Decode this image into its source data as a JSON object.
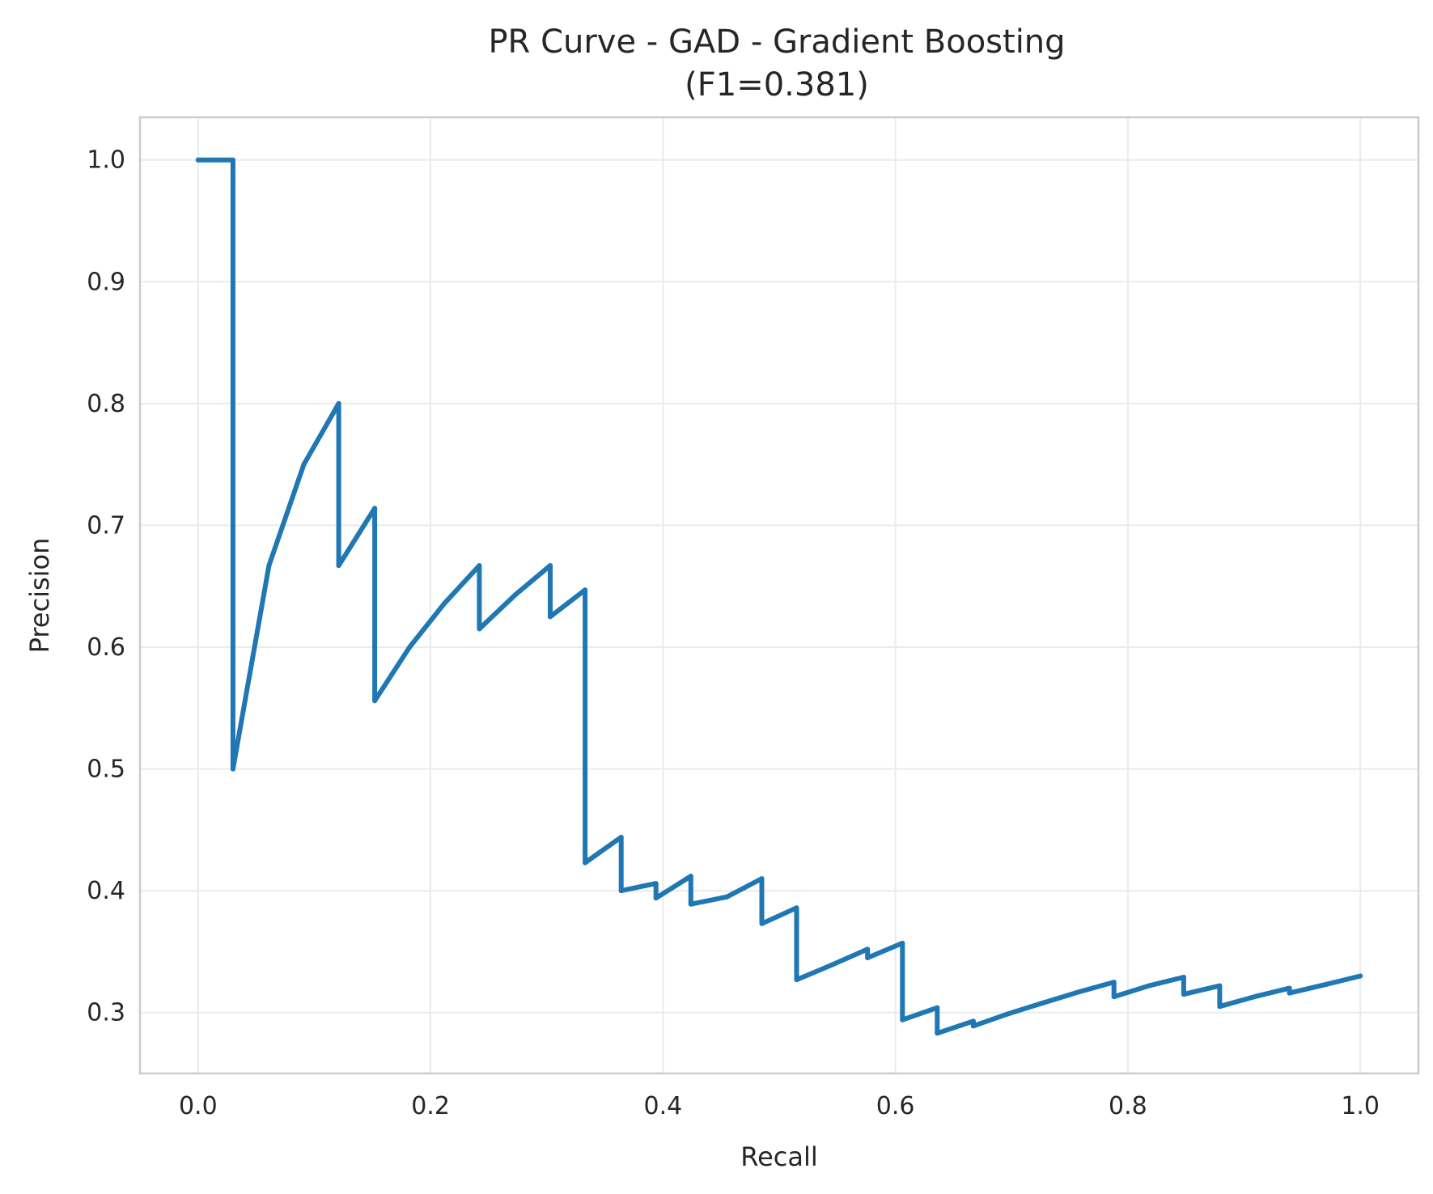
{
  "chart_data": {
    "type": "line",
    "title": "PR Curve - GAD - Gradient Boosting",
    "subtitle": "(F1=0.381)",
    "xlabel": "Recall",
    "ylabel": "Precision",
    "xlim": [
      -0.05,
      1.05
    ],
    "ylim": [
      0.25,
      1.035
    ],
    "xticks": [
      "0.0",
      "0.2",
      "0.4",
      "0.6",
      "0.8",
      "1.0"
    ],
    "yticks": [
      "0.3",
      "0.4",
      "0.5",
      "0.6",
      "0.7",
      "0.8",
      "0.9",
      "1.0"
    ],
    "grid": true,
    "series": [
      {
        "color": "#1f77b4",
        "x": [
          0.0,
          0.03,
          0.03,
          0.061,
          0.091,
          0.121,
          0.121,
          0.152,
          0.152,
          0.182,
          0.212,
          0.242,
          0.242,
          0.273,
          0.303,
          0.303,
          0.333,
          0.333,
          0.364,
          0.364,
          0.394,
          0.394,
          0.424,
          0.424,
          0.455,
          0.485,
          0.485,
          0.515,
          0.515,
          0.545,
          0.576,
          0.576,
          0.606,
          0.606,
          0.636,
          0.636,
          0.667,
          0.667,
          0.697,
          0.727,
          0.758,
          0.788,
          0.788,
          0.818,
          0.848,
          0.848,
          0.879,
          0.879,
          0.909,
          0.939,
          0.939,
          0.97,
          1.0
        ],
        "y": [
          1.0,
          1.0,
          0.5,
          0.667,
          0.75,
          0.8,
          0.667,
          0.714,
          0.556,
          0.6,
          0.636,
          0.667,
          0.615,
          0.643,
          0.667,
          0.625,
          0.647,
          0.423,
          0.444,
          0.4,
          0.406,
          0.394,
          0.412,
          0.389,
          0.395,
          0.41,
          0.373,
          0.386,
          0.327,
          0.339,
          0.352,
          0.345,
          0.357,
          0.294,
          0.304,
          0.283,
          0.293,
          0.289,
          0.299,
          0.308,
          0.317,
          0.325,
          0.313,
          0.322,
          0.329,
          0.315,
          0.322,
          0.305,
          0.313,
          0.32,
          0.316,
          0.323,
          0.33
        ]
      }
    ]
  }
}
